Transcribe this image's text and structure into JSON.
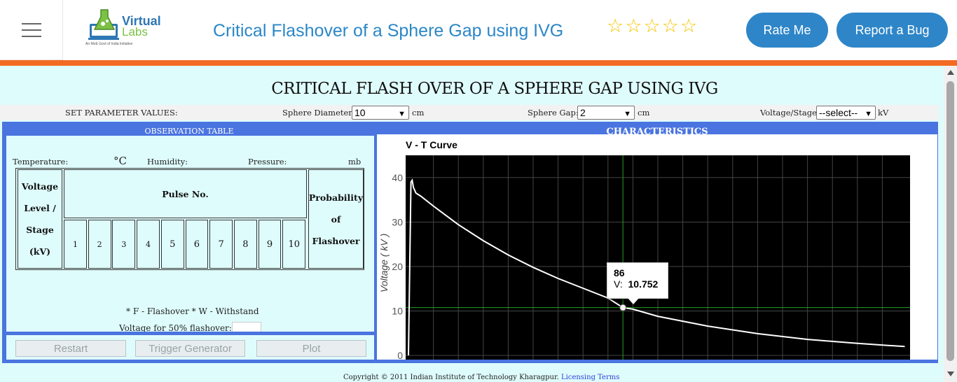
{
  "header": {
    "menu_icon": "hamburger-icon",
    "logo": {
      "word1": "Virtual",
      "word2": "Labs",
      "tagline": "An MoE Govt of India Initiative"
    },
    "title": "Critical Flashover of a Sphere Gap using IVG",
    "rating": {
      "stars_filled": 0,
      "stars_total": 5,
      "star_icon": "star-outline-icon"
    },
    "rate_button": "Rate Me",
    "bug_button": "Report a Bug",
    "accent_color": "#f26b22",
    "button_color": "#2e86c8"
  },
  "experiment": {
    "title": "CRITICAL FLASH OVER OF A SPHERE GAP USING IVG",
    "params": {
      "section_label": "SET PARAMETER VALUES:",
      "sphere_diameter_label": "Sphere Diameter:",
      "sphere_diameter_value": "10",
      "sphere_diameter_unit": "cm",
      "sphere_gap_label": "Sphere Gap:",
      "sphere_gap_value": "2",
      "sphere_gap_unit": "cm",
      "voltage_stage_label": "Voltage/Stage:",
      "voltage_stage_value": "--select--",
      "voltage_stage_unit": "kV"
    }
  },
  "observation": {
    "header": "OBSERVATION TABLE",
    "temperature_label": "Temperature:",
    "temperature_unit": "°C",
    "humidity_label": "Humidity:",
    "pressure_label": "Pressure:",
    "pressure_unit": "mb",
    "col_voltage": [
      "Voltage",
      "Level /",
      "Stage",
      "(kV)"
    ],
    "col_pulse": "Pulse No.",
    "col_probability": [
      "Probability",
      "of Flashover"
    ],
    "pulses": [
      "1",
      "2",
      "3",
      "4",
      "5",
      "6",
      "7",
      "8",
      "9",
      "10"
    ],
    "notes": "* F - Flashover   * W - Withstand",
    "v50_label": "Voltage for 50% flashover:"
  },
  "controls": {
    "restart": "Restart",
    "trigger": "Trigger Generator",
    "plot": "Plot"
  },
  "characteristics": {
    "header": "CHARACTERISTICS",
    "tooltip": {
      "x": "86",
      "v_label": "V:",
      "v_value": "10.752"
    }
  },
  "chart_data": {
    "type": "line",
    "title": "V - T Curve",
    "xlabel": "",
    "ylabel": "Voltage ( kV )",
    "ylim": [
      0,
      45
    ],
    "yticks": [
      10,
      20,
      30,
      40
    ],
    "xlim": [
      0,
      200
    ],
    "background": "#000000",
    "grid": true,
    "grid_color": "#444444",
    "line_color": "#ffffff",
    "crosshair_color": "#1fa21f",
    "series": [
      {
        "x": [
          0,
          1,
          1.5,
          2,
          3,
          5,
          10,
          20,
          30,
          40,
          50,
          60,
          70,
          80,
          86,
          90,
          100,
          120,
          140,
          160,
          180,
          199
        ],
        "values": [
          0,
          39,
          39.4,
          37.8,
          36.5,
          35.8,
          33.6,
          29.4,
          25.8,
          22.6,
          19.8,
          17.3,
          15.1,
          12.9,
          10.752,
          10.4,
          8.8,
          6.6,
          4.9,
          3.6,
          2.7,
          2.0
        ]
      }
    ],
    "highlight_point": {
      "x": 86,
      "y": 10.752
    }
  },
  "footer": {
    "text": "Copyright © 2011 Indian Institute of Technology Kharagpur.",
    "link": "Licensing Terms"
  }
}
